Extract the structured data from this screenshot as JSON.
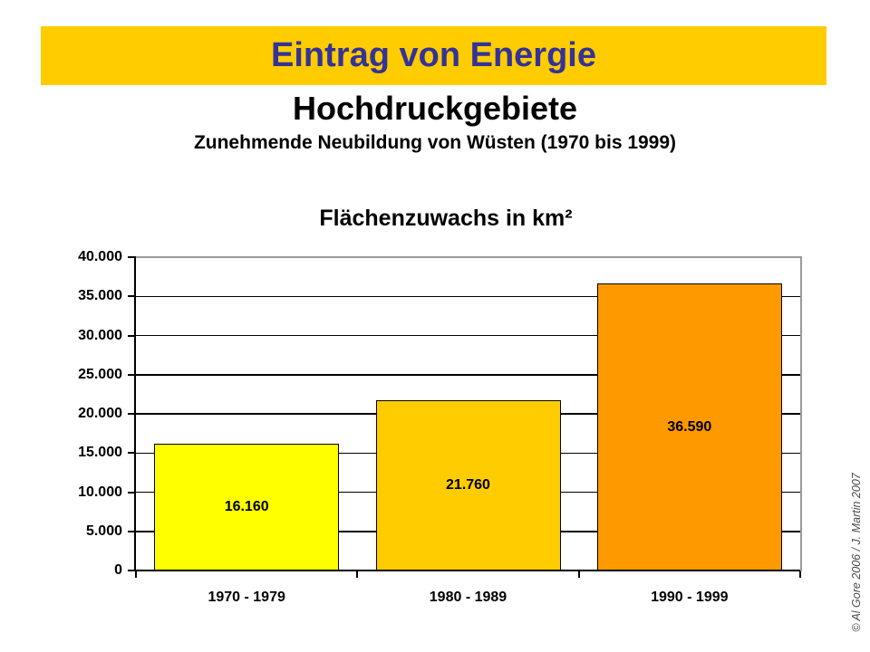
{
  "slide": {
    "banner": {
      "title": "Eintrag von Energie",
      "bg_color": "#FFCC00",
      "title_color": "#333399"
    },
    "heading": "Hochdruckgebiete",
    "subheading": "Zunehmende Neubildung von Wüsten (1970 bis 1999)",
    "credit": "© Al Gore 2006 / J. Martin 2007"
  },
  "chart_data": {
    "type": "bar",
    "title": "Flächenzuwachs in km²",
    "categories": [
      "1970 - 1979",
      "1980 - 1989",
      "1990 - 1999"
    ],
    "values": [
      16160,
      21760,
      36590
    ],
    "value_labels": [
      "16.160",
      "21.760",
      "36.590"
    ],
    "bar_colors": [
      "#FFFF00",
      "#FFCC00",
      "#FF9900"
    ],
    "xlabel": "",
    "ylabel": "",
    "ylim": [
      0,
      40000
    ],
    "ytick_step": 5000,
    "ytick_labels": [
      "0",
      "5.000",
      "10.000",
      "15.000",
      "20.000",
      "25.000",
      "30.000",
      "35.000",
      "40.000"
    ],
    "grid": true,
    "grid_color": "#000000",
    "plot_border_color": "#999999",
    "axis_color": "#000000",
    "legend": "none"
  }
}
